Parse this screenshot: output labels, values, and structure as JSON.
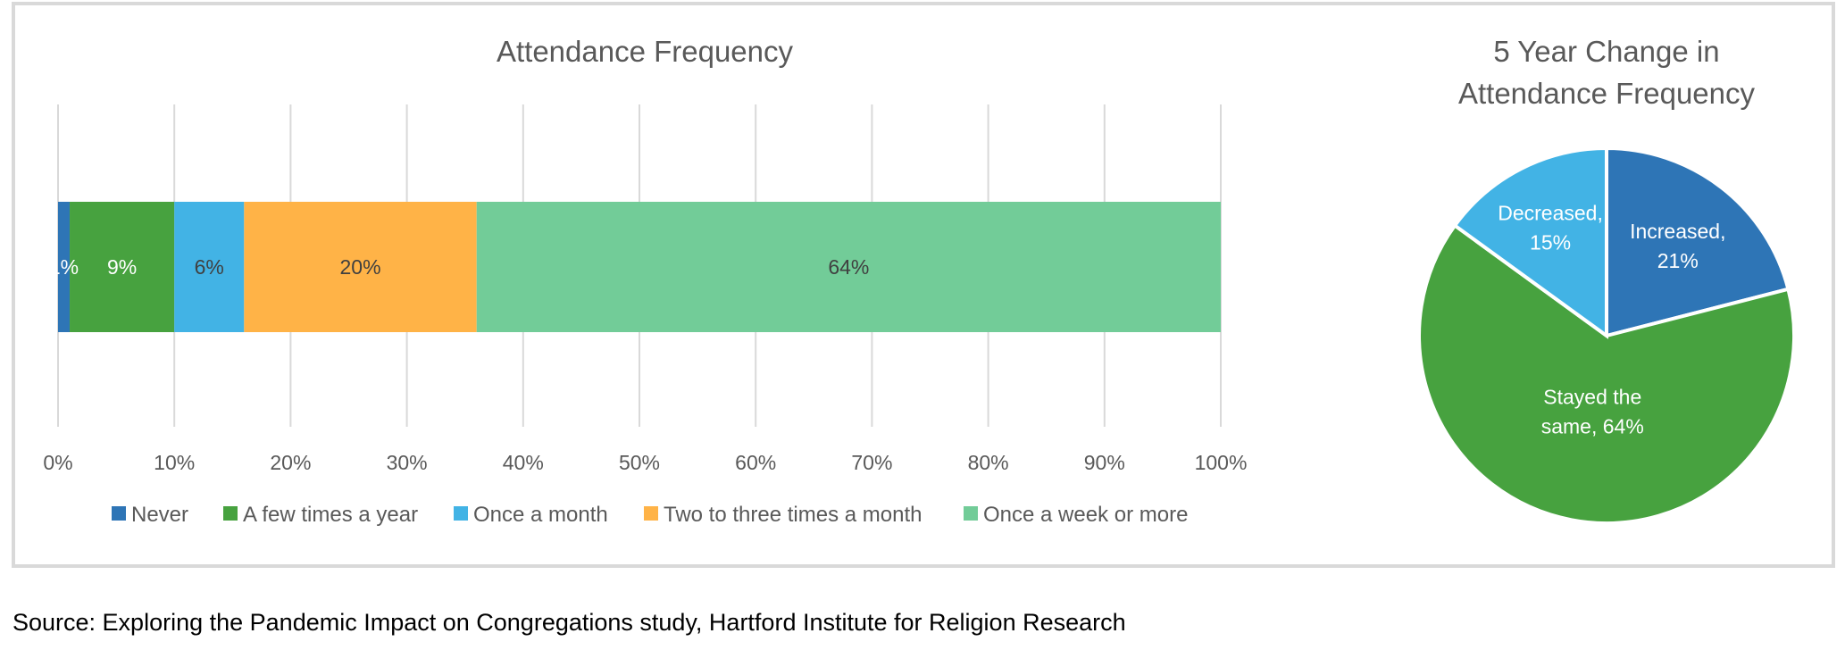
{
  "chart_data": [
    {
      "type": "bar",
      "orientation": "horizontal",
      "stacked": true,
      "title": "Attendance Frequency",
      "xlim": [
        0,
        100
      ],
      "x_ticks": [
        "0%",
        "10%",
        "20%",
        "30%",
        "40%",
        "50%",
        "60%",
        "70%",
        "80%",
        "90%",
        "100%"
      ],
      "grid": "vertical",
      "legend_position": "bottom",
      "series": [
        {
          "name": "Never",
          "values": [
            1
          ],
          "label": "1%",
          "color": "#2e75b6",
          "label_color": "#ffffff"
        },
        {
          "name": "A few times a year",
          "values": [
            9
          ],
          "label": "9%",
          "color": "#47a23f",
          "label_color": "#ffffff"
        },
        {
          "name": "Once a month",
          "values": [
            6
          ],
          "label": "6%",
          "color": "#42b3e5",
          "label_color": "#404040"
        },
        {
          "name": "Two to three times a month",
          "values": [
            20
          ],
          "label": "20%",
          "color": "#ffb347",
          "label_color": "#404040"
        },
        {
          "name": "Once a week or more",
          "values": [
            64
          ],
          "label": "64%",
          "color": "#72cc98",
          "label_color": "#404040"
        }
      ]
    },
    {
      "type": "pie",
      "title_lines": [
        "5 Year Change in",
        "Attendance Frequency"
      ],
      "slices": [
        {
          "label_lines": [
            "Increased,",
            "21%"
          ],
          "value": 21,
          "color": "#2e75b6"
        },
        {
          "label_lines": [
            "Stayed the",
            "same, 64%"
          ],
          "value": 64,
          "color": "#47a23f"
        },
        {
          "label_lines": [
            "Decreased,",
            "15%"
          ],
          "value": 15,
          "color": "#42b3e5"
        }
      ]
    }
  ],
  "source": "Source: Exploring the Pandemic Impact on Congregations study, Hartford Institute for Religion Research"
}
